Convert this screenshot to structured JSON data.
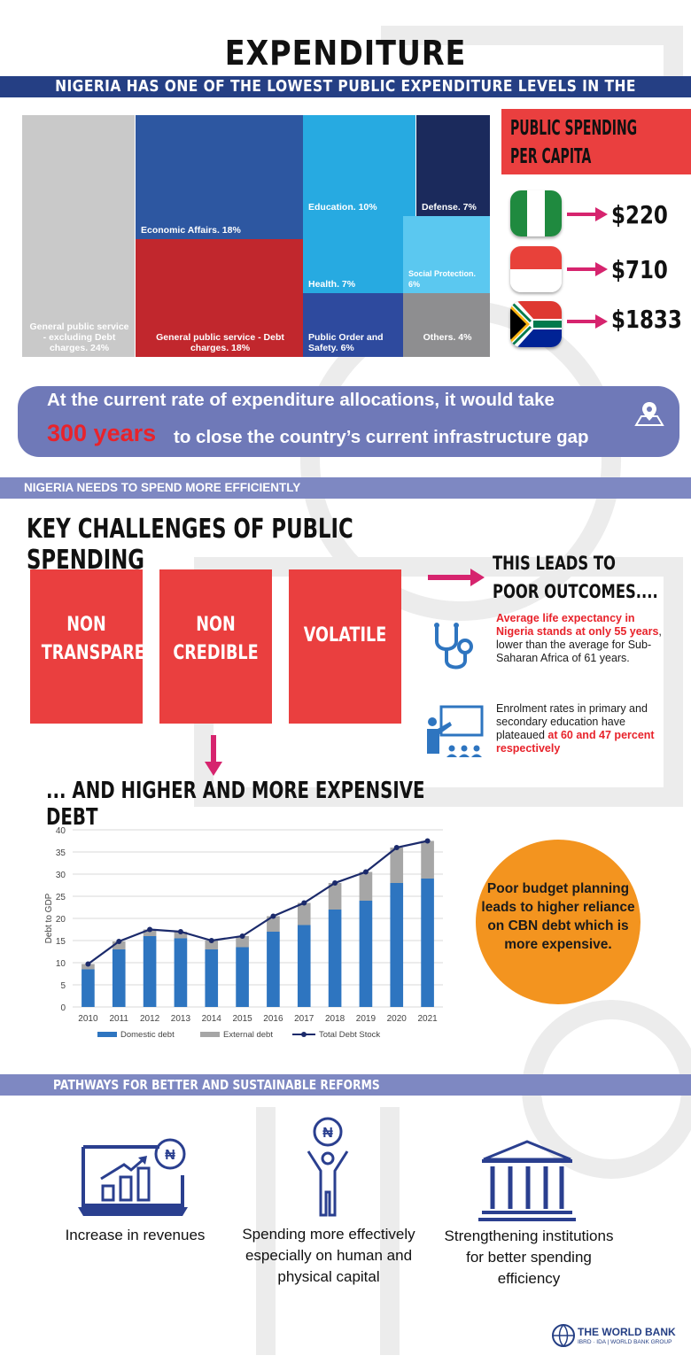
{
  "header": {
    "title": "EXPENDITURE",
    "banner": "NIGERIA HAS ONE OF THE LOWEST PUBLIC EXPENDITURE LEVELS IN THE WORLD"
  },
  "treemap": {
    "items": [
      {
        "label": "General public service - excluding Debt charges. 24%",
        "value": 24,
        "color": "#c9c9c9"
      },
      {
        "label": "Economic Affairs. 18%",
        "value": 18,
        "color": "#2d57a1"
      },
      {
        "label": "General public service - Debt charges. 18%",
        "value": 18,
        "color": "#c1272d"
      },
      {
        "label": "Education. 10%",
        "value": 10,
        "color": "#27aae1"
      },
      {
        "label": "Defense. 7%",
        "value": 7,
        "color": "#1b2a5c"
      },
      {
        "label": "Health. 7%",
        "value": 7,
        "color": "#27aae1"
      },
      {
        "label": "Social Protection. 6%",
        "value": 6,
        "color": "#5bc8f0"
      },
      {
        "label": "Public Order and Safety. 6%",
        "value": 6,
        "color": "#2e4a9e"
      },
      {
        "label": "Others. 4%",
        "value": 4,
        "color": "#8e8e90"
      }
    ]
  },
  "per_capita": {
    "title_line1": "PUBLIC SPENDING",
    "title_line2": "PER CAPITA",
    "rows": [
      {
        "amount": "$220",
        "flag": "nigeria-flag-icon"
      },
      {
        "amount": "$710",
        "flag": "indonesia-flag-icon"
      },
      {
        "amount": "$1833",
        "flag": "south-africa-flag-icon"
      }
    ]
  },
  "gap_callout": {
    "line1": "At the current rate of expenditure allocations, it would take",
    "years": "300 years",
    "line2": "to close the country’s current infrastructure gap",
    "icon": "map-pin-icon"
  },
  "section2": {
    "banner": "NIGERIA NEEDS TO SPEND MORE EFFICIENTLY",
    "title": "KEY CHALLENGES OF PUBLIC SPENDING",
    "challenges": [
      {
        "line1": "NON",
        "line2": "TRANSPARENT"
      },
      {
        "line1": "NON",
        "line2": "CREDIBLE"
      },
      {
        "line1": "VOLATILE",
        "line2": ""
      }
    ],
    "leads_line1": "THIS LEADS TO",
    "leads_line2": "POOR OUTCOMES....",
    "outcome1_red": "Average life expectancy in Nigeria stands at only 55 years",
    "outcome1_rest": ", lower than the average for Sub-Saharan Africa of 61 years.",
    "outcome2_rest": "Enrolment rates in primary and secondary education have plateaued ",
    "outcome2_red": "at 60 and 47 percent respectively"
  },
  "debt": {
    "title": "... AND HIGHER AND MORE EXPENSIVE DEBT",
    "callout": "Poor budget planning leads to higher reliance on CBN debt which is more expensive."
  },
  "chart_data": {
    "type": "bar",
    "categories": [
      "2010",
      "2011",
      "2012",
      "2013",
      "2014",
      "2015",
      "2016",
      "2017",
      "2018",
      "2019",
      "2020",
      "2021"
    ],
    "series": [
      {
        "name": "Domestic debt",
        "values": [
          8.5,
          13,
          16,
          15.5,
          13,
          13.5,
          17,
          18.5,
          22,
          24,
          28,
          29
        ],
        "color": "#2e75c0"
      },
      {
        "name": "External debt",
        "values": [
          1.2,
          1.8,
          1.5,
          1.5,
          2,
          2.5,
          3.5,
          5,
          6,
          6.5,
          8,
          8.5
        ],
        "color": "#a6a6a6"
      },
      {
        "name": "Total Debt Stock",
        "values": [
          9.7,
          14.8,
          17.5,
          17,
          15,
          16,
          20.5,
          23.5,
          28,
          30.5,
          36,
          37.5
        ],
        "color": "#1b2a6b",
        "kind": "line"
      }
    ],
    "ylabel": "Debt to GDP",
    "ylim": [
      0,
      40
    ],
    "yticks": [
      0,
      5,
      10,
      15,
      20,
      25,
      30,
      35,
      40
    ],
    "grid": true,
    "legend": "bottom"
  },
  "pathways": {
    "banner": "PATHWAYS FOR BETTER AND SUSTAINABLE REFORMS",
    "items": [
      {
        "text": "Increase in revenues",
        "icon": "revenue-chart-icon"
      },
      {
        "text": "Spending more effectively especially on human and physical capital",
        "icon": "person-naira-icon"
      },
      {
        "text": "Strengthening institutions for better spending efficiency",
        "icon": "institution-building-icon"
      }
    ]
  },
  "footer": {
    "org": "THE WORLD BANK",
    "sub": "IBRD · IDA | WORLD BANK GROUP"
  }
}
